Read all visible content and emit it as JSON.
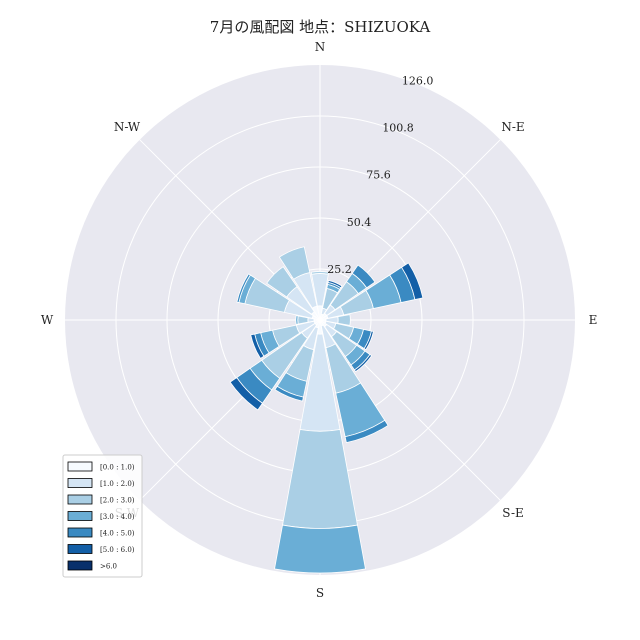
{
  "title": "7月の風配図 地点：SHIZUOKA",
  "chart_data": {
    "type": "windrose",
    "title": "7月の風配図 地点：SHIZUOKA",
    "directions": [
      "N",
      "NNE",
      "NE",
      "ENE",
      "E",
      "ESE",
      "SE",
      "SSE",
      "S",
      "SSW",
      "SW",
      "WSW",
      "W",
      "WNW",
      "NW",
      "NNW"
    ],
    "direction_labels": [
      "N",
      "N-E",
      "E",
      "S-E",
      "S",
      "S-W",
      "W",
      "N-W"
    ],
    "radial_ticks": [
      "25.2",
      "50.4",
      "75.6",
      "100.8",
      "126.0"
    ],
    "rmax": 126.0,
    "legend": {
      "position": "lower-left",
      "entries": [
        "[0.0 : 1.0)",
        "[1.0 : 2.0)",
        "[2.0 : 3.0)",
        "[3.0 : 4.0)",
        "[4.0 : 5.0)",
        "[5.0 : 6.0)",
        ">6.0"
      ]
    },
    "series_colors": [
      "#f7fbff",
      "#d5e5f4",
      "#aacfe5",
      "#6aaed6",
      "#3a8ac2",
      "#135fa7",
      "#08306b"
    ],
    "series": [
      {
        "name": "[0.0 : 1.0)",
        "values": [
          7,
          3,
          4,
          4,
          3,
          3,
          4,
          3,
          7,
          4,
          3,
          3,
          3,
          4,
          5,
          7
        ]
      },
      {
        "name": "[1.0 : 2.0)",
        "values": [
          16,
          3,
          5,
          8,
          6,
          5,
          6,
          11,
          48,
          11,
          8,
          9,
          3,
          14,
          15,
          17
        ]
      },
      {
        "name": "[2.0 : 3.0)",
        "values": [
          1,
          10,
          14,
          15,
          6,
          9,
          12,
          23,
          48,
          16,
          24,
          12,
          5,
          20,
          12,
          13
        ]
      },
      {
        "name": "[3.0 : 4.0)",
        "values": [
          0,
          2,
          5,
          14,
          0,
          5,
          5,
          22,
          22,
          8,
          7,
          6,
          1,
          3,
          0,
          0
        ]
      },
      {
        "name": "[4.0 : 5.0)",
        "values": [
          0,
          1,
          5,
          7,
          0,
          4,
          3,
          3,
          0,
          2,
          8,
          3,
          0,
          1,
          0,
          0
        ]
      },
      {
        "name": "[5.0 : 6.0)",
        "values": [
          0,
          1,
          0,
          4,
          0,
          1,
          1,
          0,
          0,
          0,
          4,
          2,
          0,
          0,
          0,
          0
        ]
      },
      {
        "name": ">6.0",
        "values": [
          0,
          0,
          0,
          0,
          0,
          0,
          0,
          0,
          0,
          0,
          0,
          0,
          0,
          0,
          0,
          0
        ]
      }
    ]
  }
}
